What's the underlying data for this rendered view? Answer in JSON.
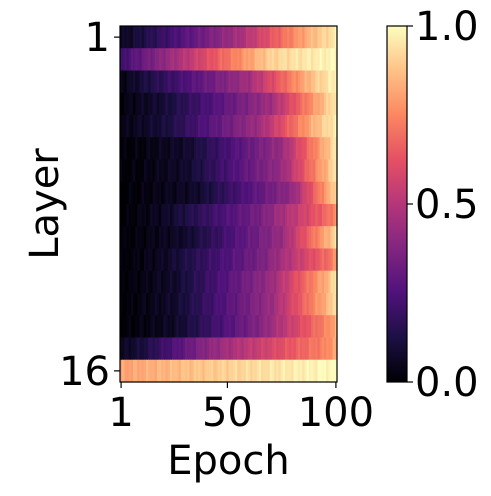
{
  "chart_data": {
    "type": "heatmap",
    "colormap": "magma",
    "xlabel": "Epoch",
    "ylabel": "Layer",
    "x_ticks": [
      1,
      50,
      100
    ],
    "y_ticks": [
      1,
      16
    ],
    "x_range": [
      1,
      100
    ],
    "y_range": [
      1,
      16
    ],
    "value_range": [
      0.0,
      1.0
    ],
    "colorbar_ticks": [
      "0.0",
      "0.5",
      "1.0"
    ],
    "layers": [
      {
        "layer": 1,
        "t": [
          0.1,
          0.55,
          0.9
        ],
        "lo": 0.05,
        "hi": 0.96
      },
      {
        "layer": 2,
        "t": [
          0.05,
          0.35,
          0.7
        ],
        "lo": 0.2,
        "hi": 0.99
      },
      {
        "layer": 3,
        "t": [
          0.1,
          0.6,
          0.9
        ],
        "lo": 0.03,
        "hi": 0.98
      },
      {
        "layer": 4,
        "t": [
          0.2,
          0.7,
          0.95
        ],
        "lo": 0.02,
        "hi": 0.97
      },
      {
        "layer": 5,
        "t": [
          0.2,
          0.65,
          0.92
        ],
        "lo": 0.03,
        "hi": 0.97
      },
      {
        "layer": 6,
        "t": [
          0.3,
          0.75,
          0.96
        ],
        "lo": 0.0,
        "hi": 0.96
      },
      {
        "layer": 7,
        "t": [
          0.3,
          0.75,
          0.96
        ],
        "lo": 0.0,
        "hi": 0.95
      },
      {
        "layer": 8,
        "t": [
          0.35,
          0.8,
          0.97
        ],
        "lo": 0.0,
        "hi": 0.93
      },
      {
        "layer": 9,
        "t": [
          0.2,
          0.65,
          0.97
        ],
        "lo": 0.0,
        "hi": 0.78
      },
      {
        "layer": 10,
        "t": [
          0.3,
          0.75,
          0.97
        ],
        "lo": 0.0,
        "hi": 0.95
      },
      {
        "layer": 11,
        "t": [
          0.2,
          0.65,
          0.97
        ],
        "lo": 0.0,
        "hi": 0.78
      },
      {
        "layer": 12,
        "t": [
          0.25,
          0.7,
          0.97
        ],
        "lo": 0.0,
        "hi": 0.96
      },
      {
        "layer": 13,
        "t": [
          0.25,
          0.7,
          0.97
        ],
        "lo": 0.0,
        "hi": 0.96
      },
      {
        "layer": 14,
        "t": [
          0.25,
          0.65,
          0.97
        ],
        "lo": 0.0,
        "hi": 0.85
      },
      {
        "layer": 15,
        "t": [
          0.1,
          0.4,
          0.95
        ],
        "lo": 0.05,
        "hi": 0.82
      },
      {
        "layer": 16,
        "t": [
          0.05,
          0.4,
          0.9
        ],
        "lo": 0.8,
        "hi": 1.0
      }
    ]
  }
}
